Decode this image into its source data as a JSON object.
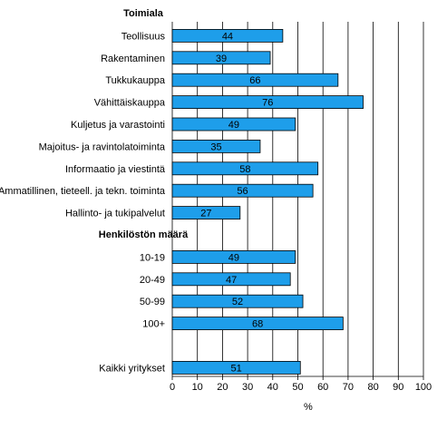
{
  "chart_data": {
    "type": "bar",
    "orientation": "horizontal",
    "xlabel": "%",
    "xlim": [
      0,
      100
    ],
    "x_ticks": [
      "0",
      "10",
      "20",
      "30",
      "40",
      "50",
      "60",
      "70",
      "80",
      "90",
      "100"
    ],
    "grid": "vertical lines",
    "bar_color": "#1E9EEA",
    "groups": [
      {
        "header": "Toimiala",
        "categories": [
          "Teollisuus",
          "Rakentaminen",
          "Tukkukauppa",
          "Vähittäiskauppa",
          "Kuljetus ja varastointi",
          "Majoitus- ja ravintolatoiminta",
          "Informaatio ja viestintä",
          "Ammatillinen, tieteell. ja tekn. toiminta",
          "Hallinto- ja tukipalvelut"
        ],
        "values": [
          44,
          39,
          66,
          76,
          49,
          35,
          58,
          56,
          27
        ]
      },
      {
        "header": "Henkilöstön määrä",
        "categories": [
          "10-19",
          "20-49",
          "50-99",
          "100+"
        ],
        "values": [
          49,
          47,
          52,
          68
        ]
      },
      {
        "header": "",
        "categories": [
          "Kaikki yritykset"
        ],
        "values": [
          51
        ]
      }
    ]
  }
}
